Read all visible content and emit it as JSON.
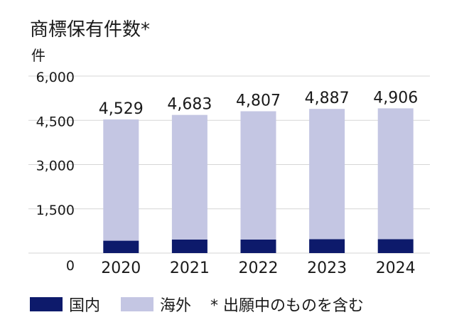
{
  "chart_data": {
    "type": "bar",
    "stacked": true,
    "title": "商標保有件数*",
    "ylabel": "件",
    "categories": [
      "2020",
      "2021",
      "2022",
      "2023",
      "2024"
    ],
    "totals": [
      "4,529",
      "4,683",
      "4,807",
      "4,887",
      "4,906"
    ],
    "ylim": [
      0,
      6000
    ],
    "yticks": [
      "6,000",
      "4,500",
      "3,000",
      "1,500",
      "0"
    ],
    "grid": true,
    "legend_position": "bottom",
    "series": [
      {
        "name": "国内",
        "color": "#0d1a6b",
        "values": [
          420,
          460,
          460,
          470,
          470
        ]
      },
      {
        "name": "海外",
        "color": "#c4c6e3",
        "values": [
          4109,
          4223,
          4347,
          4417,
          4436
        ]
      }
    ],
    "note": "* 出願中のものを含む"
  }
}
